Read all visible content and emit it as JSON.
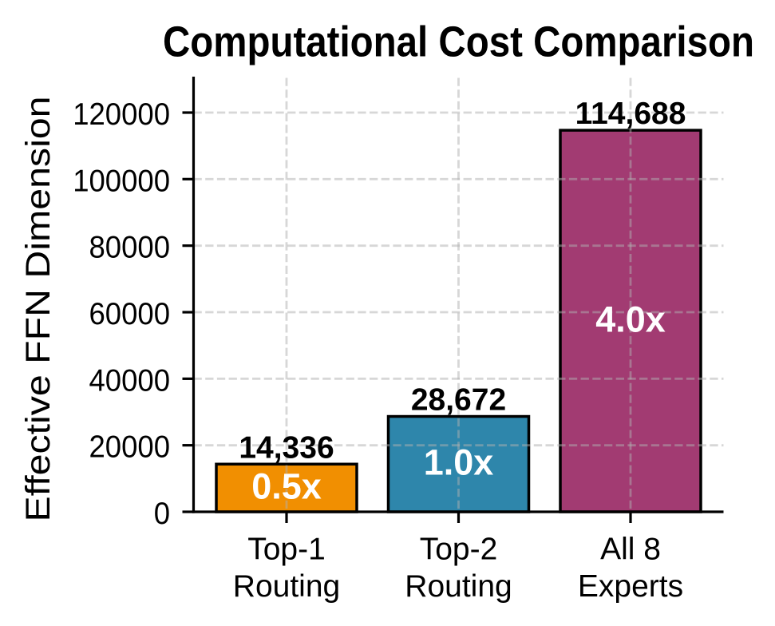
{
  "chart_data": {
    "type": "bar",
    "title": "Computational Cost Comparison",
    "ylabel": "Effective FFN Dimension",
    "xlabel": "",
    "categories": [
      [
        "Top-1",
        "Routing"
      ],
      [
        "Top-2",
        "Routing"
      ],
      [
        "All 8",
        "Experts"
      ]
    ],
    "values": [
      14336,
      28672,
      114688
    ],
    "bar_value_labels": [
      "14,336",
      "28,672",
      "114,688"
    ],
    "bar_inner_labels": [
      "0.5x",
      "1.0x",
      "4.0x"
    ],
    "bar_colors": [
      "#F18F01",
      "#2E86AB",
      "#A23B72"
    ],
    "bar_edge_color": "#000000",
    "yticks": [
      0,
      20000,
      40000,
      60000,
      80000,
      100000,
      120000
    ],
    "ytick_labels": [
      "0",
      "20000",
      "40000",
      "60000",
      "80000",
      "100000",
      "120000"
    ],
    "ylim": [
      0,
      130440
    ],
    "grid": true,
    "grid_line_style": "dashed",
    "grid_color": "#b0b0b0",
    "text_color": "#000000",
    "background_color": "#ffffff",
    "legend": "none"
  }
}
